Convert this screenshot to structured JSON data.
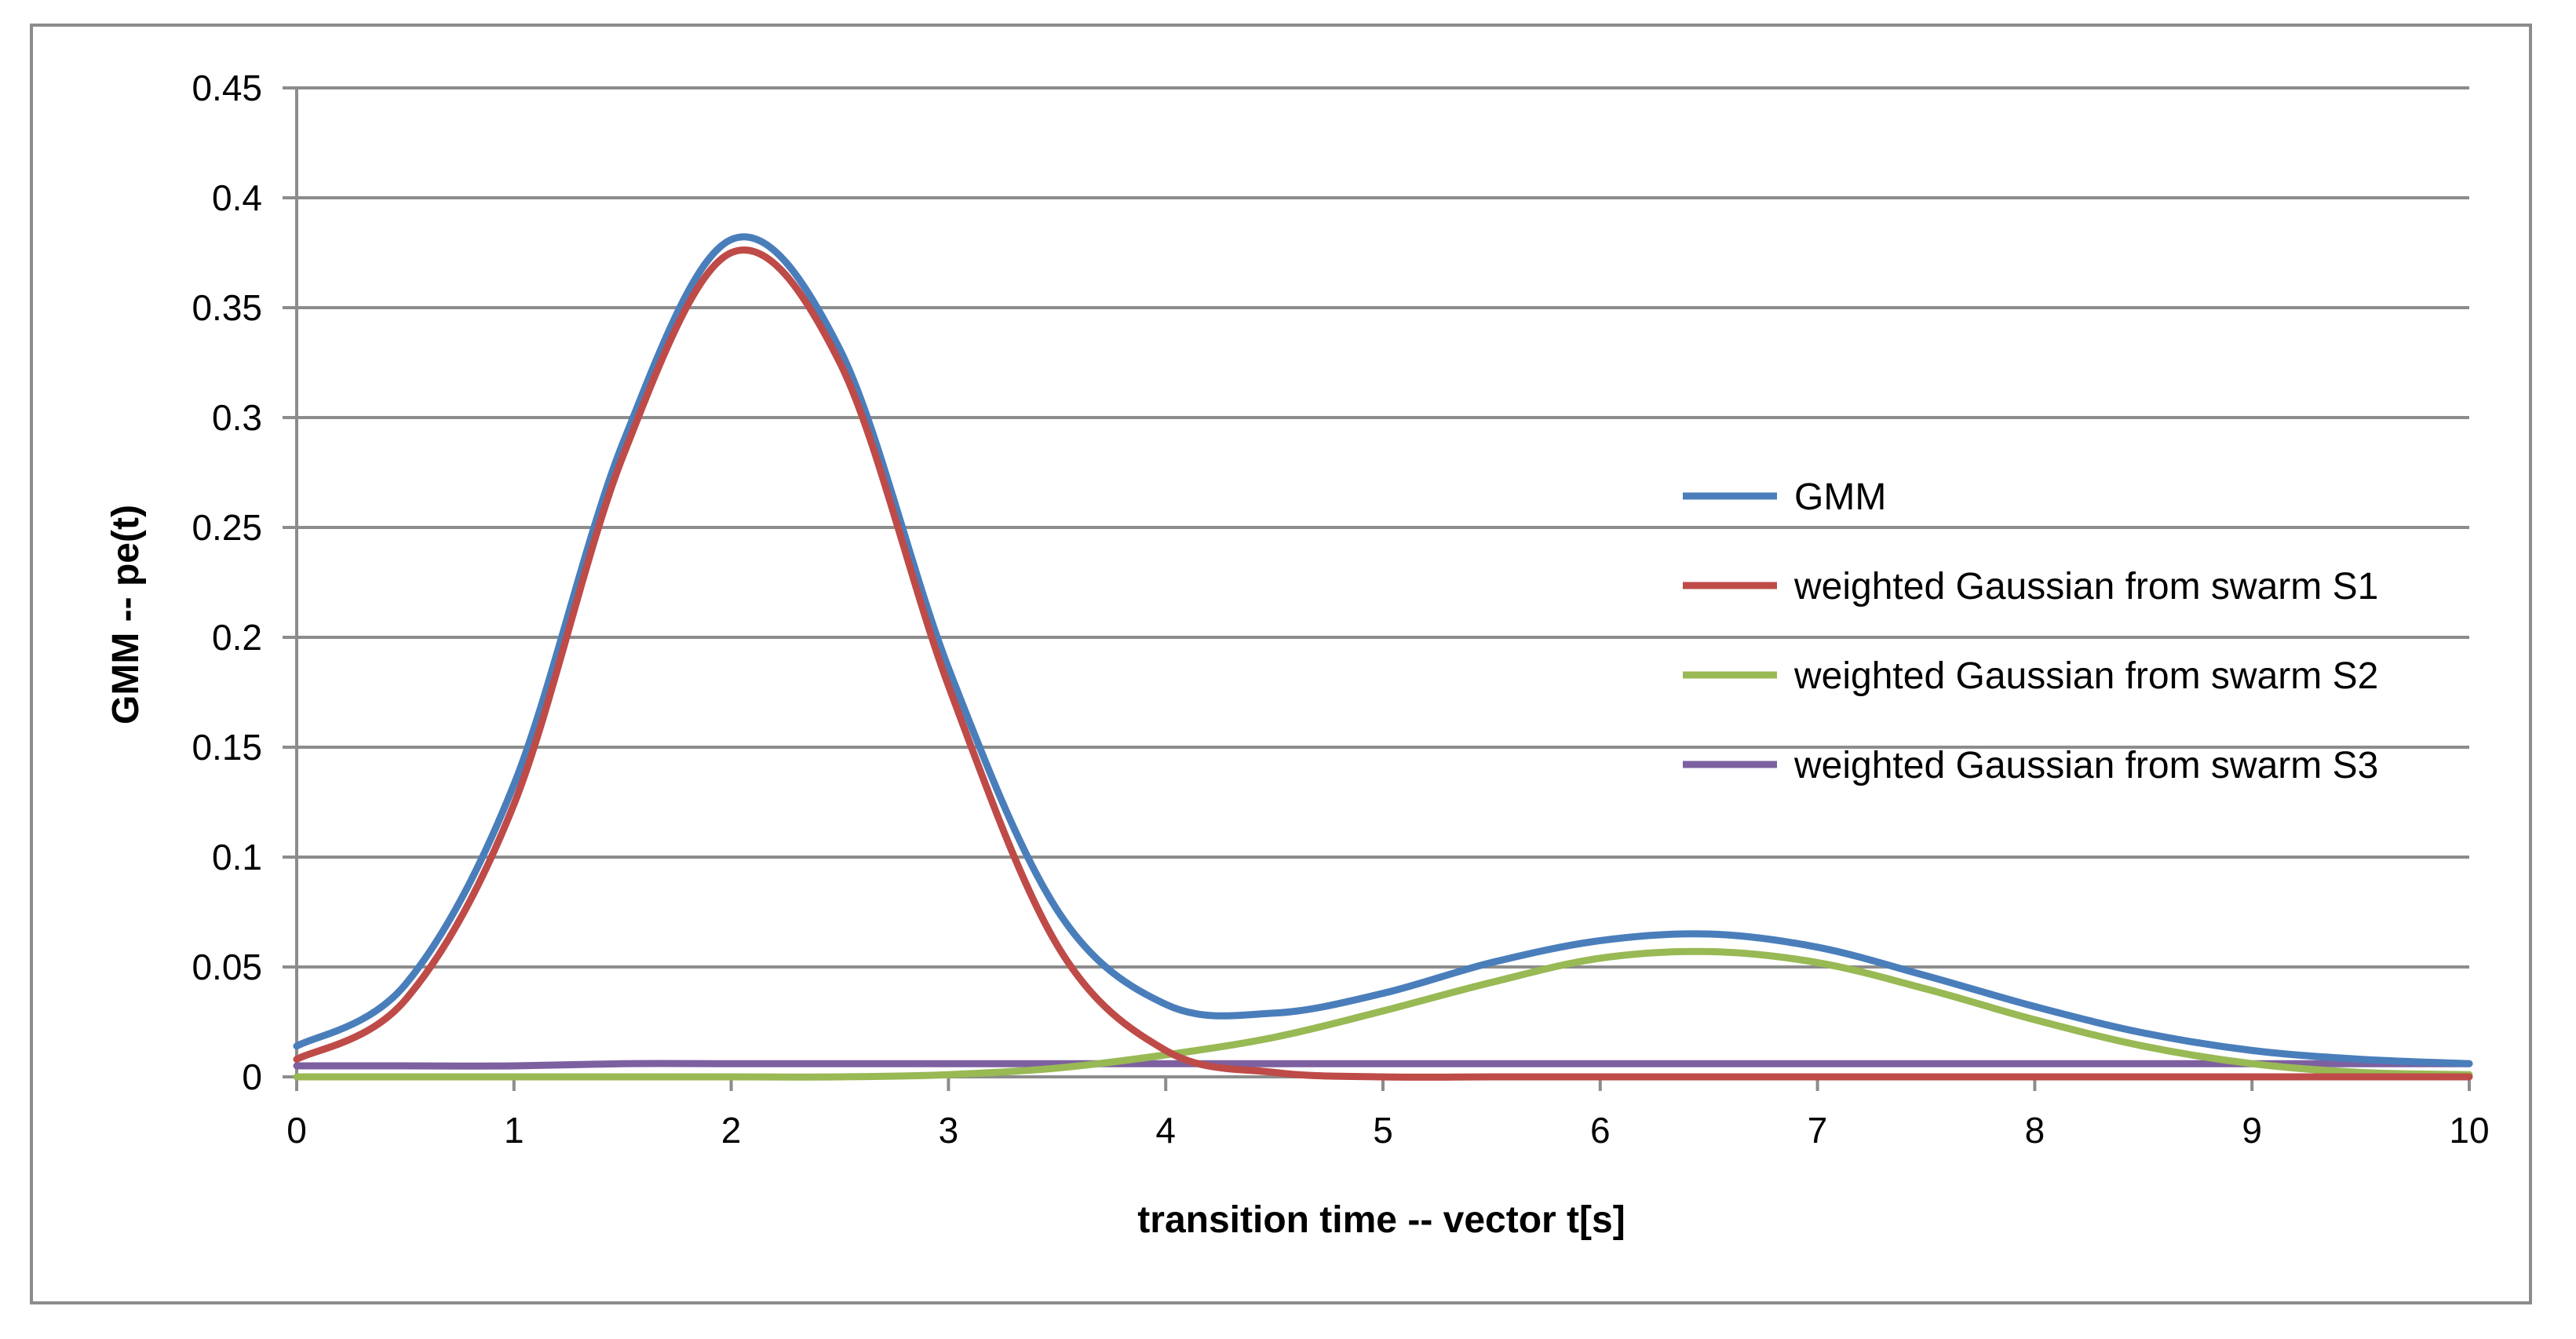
{
  "chart_data": {
    "type": "line",
    "title": "",
    "xlabel": "transition time -- vector t[s]",
    "ylabel": "GMM -- pe(t)",
    "xlim": [
      0,
      10
    ],
    "ylim": [
      0,
      0.45
    ],
    "x_ticks": [
      0,
      1,
      2,
      3,
      4,
      5,
      6,
      7,
      8,
      9,
      10
    ],
    "y_ticks": [
      0,
      0.05,
      0.1,
      0.15,
      0.2,
      0.25,
      0.3,
      0.35,
      0.4,
      0.45
    ],
    "x_tick_labels": [
      "0",
      "1",
      "2",
      "3",
      "4",
      "5",
      "6",
      "7",
      "8",
      "9",
      "10"
    ],
    "y_tick_labels": [
      "0",
      "0.05",
      "0.1",
      "0.15",
      "0.2",
      "0.25",
      "0.3",
      "0.35",
      "0.4",
      "0.45"
    ],
    "grid": "horizontal",
    "legend_position": "right",
    "x": [
      0,
      0.5,
      1,
      1.5,
      2,
      2.5,
      3,
      3.5,
      4,
      4.5,
      5,
      5.5,
      6,
      6.5,
      7,
      7.5,
      8,
      8.5,
      9,
      9.5,
      10
    ],
    "series": [
      {
        "name": "GMM",
        "color": "#4a7ebb",
        "values": [
          0.014,
          0.042,
          0.133,
          0.288,
          0.381,
          0.331,
          0.186,
          0.076,
          0.033,
          0.029,
          0.038,
          0.052,
          0.062,
          0.065,
          0.059,
          0.046,
          0.032,
          0.02,
          0.012,
          0.008,
          0.006
        ]
      },
      {
        "name": "weighted Gaussian from swarm S1",
        "color": "#be4b48",
        "values": [
          0.008,
          0.035,
          0.124,
          0.282,
          0.375,
          0.325,
          0.178,
          0.06,
          0.012,
          0.002,
          0.0,
          0.0,
          0.0,
          0.0,
          0.0,
          0.0,
          0.0,
          0.0,
          0.0,
          0.0,
          0.0
        ]
      },
      {
        "name": "weighted Gaussian from swarm S2",
        "color": "#98b954",
        "values": [
          0.0,
          0.0,
          0.0,
          0.0,
          0.0,
          0.0,
          0.001,
          0.004,
          0.01,
          0.018,
          0.03,
          0.043,
          0.054,
          0.057,
          0.052,
          0.04,
          0.026,
          0.014,
          0.006,
          0.002,
          0.001
        ]
      },
      {
        "name": "weighted Gaussian from swarm S3",
        "color": "#7d60a0",
        "values": [
          0.005,
          0.005,
          0.005,
          0.006,
          0.006,
          0.006,
          0.006,
          0.006,
          0.006,
          0.006,
          0.006,
          0.006,
          0.006,
          0.006,
          0.006,
          0.006,
          0.006,
          0.006,
          0.006,
          0.006,
          0.006
        ]
      }
    ]
  }
}
